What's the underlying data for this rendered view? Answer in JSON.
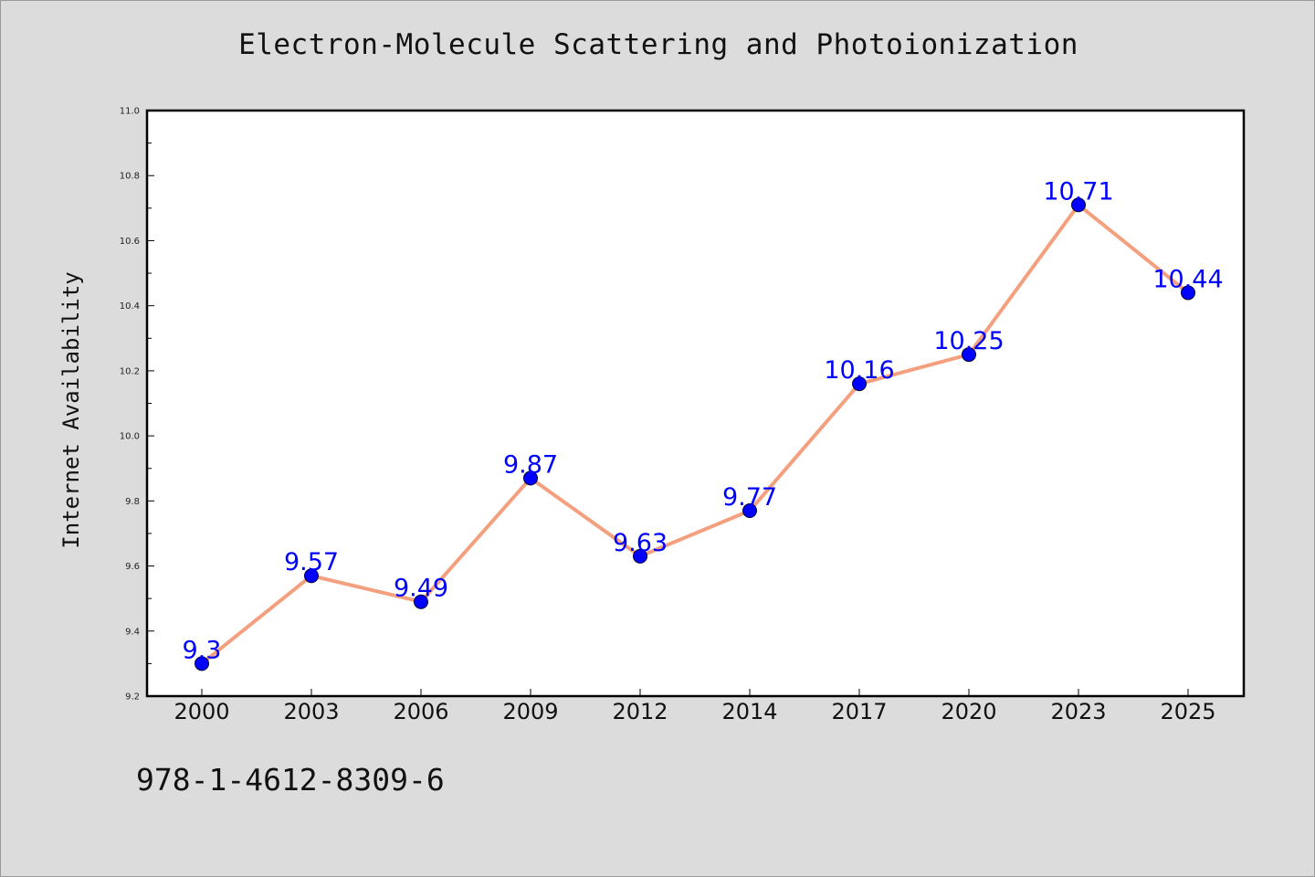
{
  "chart_data": {
    "type": "line",
    "title": "Electron-Molecule Scattering and Photoionization",
    "xlabel": "",
    "ylabel": "Internet Availability",
    "categories": [
      "2000",
      "2003",
      "2006",
      "2009",
      "2012",
      "2014",
      "2017",
      "2020",
      "2023",
      "2025"
    ],
    "series": [
      {
        "values": [
          9.3,
          9.57,
          9.49,
          9.87,
          9.63,
          9.77,
          10.16,
          10.25,
          10.71,
          10.44
        ],
        "line_color": "#f4a07e",
        "marker_color": "#0000ff"
      }
    ],
    "data_labels": [
      "9.3",
      "9.57",
      "9.49",
      "9.87",
      "9.63",
      "9.77",
      "10.16",
      "10.25",
      "10.71",
      "10.44"
    ],
    "ylim": [
      9.2,
      11.0
    ],
    "yticks": [
      "9.2",
      "9.4",
      "9.6",
      "9.8",
      "10.0",
      "10.2",
      "10.4",
      "10.6",
      "10.8",
      "11.0"
    ],
    "grid": false,
    "legend": "none"
  },
  "footer": {
    "isbn": "978-1-4612-8309-6"
  }
}
